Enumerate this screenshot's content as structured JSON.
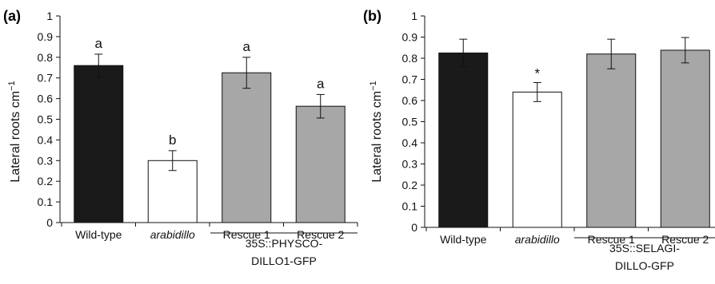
{
  "chart_data": [
    {
      "type": "bar",
      "panel": "(a)",
      "ylabel": "Lateral roots cm",
      "ylabel_sup": "−1",
      "ylim": [
        0,
        1
      ],
      "yticks": [
        "0",
        "0.1",
        "0.2",
        "0.3",
        "0.4",
        "0.5",
        "0.6",
        "0.7",
        "0.8",
        "0.9",
        "1"
      ],
      "categories": [
        "Wild-type",
        "arabidillo",
        "Rescue 1",
        "Rescue 2"
      ],
      "values": [
        0.76,
        0.3,
        0.725,
        0.563
      ],
      "errors": [
        0.055,
        0.048,
        0.075,
        0.057
      ],
      "colors": [
        "#1a1a1a",
        "#ffffff",
        "#a7a7a7",
        "#a7a7a7"
      ],
      "significance": [
        "a",
        "b",
        "a",
        "a"
      ],
      "group_label_lines": [
        "35S::PHYSCO-",
        "DILLO1-GFP"
      ]
    },
    {
      "type": "bar",
      "panel": "(b)",
      "ylabel": "Lateral roots cm",
      "ylabel_sup": "−1",
      "ylim": [
        0,
        1
      ],
      "yticks": [
        "0",
        "0.1",
        "0.2",
        "0.3",
        "0.4",
        "0.5",
        "0.6",
        "0.7",
        "0.8",
        "0.9",
        "1"
      ],
      "categories": [
        "Wild-type",
        "arabidillo",
        "Rescue 1",
        "Rescue 2"
      ],
      "values": [
        0.825,
        0.64,
        0.82,
        0.838
      ],
      "errors": [
        0.065,
        0.045,
        0.07,
        0.06
      ],
      "colors": [
        "#1a1a1a",
        "#ffffff",
        "#a7a7a7",
        "#a7a7a7"
      ],
      "significance": [
        "",
        "*",
        "",
        ""
      ],
      "group_label_lines": [
        "35S::SELAGI-",
        "DILLO-GFP"
      ]
    }
  ]
}
